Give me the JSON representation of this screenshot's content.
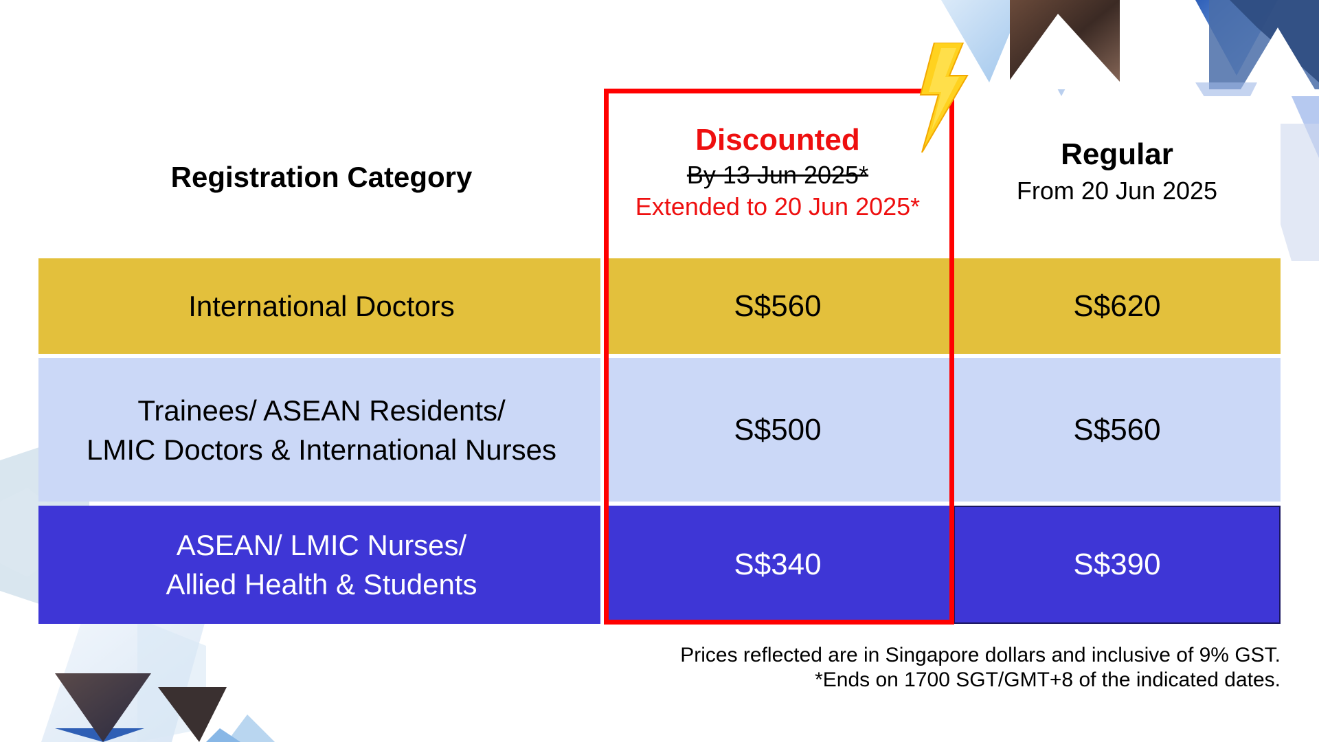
{
  "header": {
    "category_label": "Registration Category",
    "discounted": {
      "title": "Discounted",
      "original_deadline": "By 13 Jun 2025*",
      "extended_deadline": "Extended to 20 Jun 2025*"
    },
    "regular": {
      "title": "Regular",
      "subtitle": "From 20 Jun 2025"
    }
  },
  "rows": [
    {
      "category": "International Doctors",
      "discounted": "S$560",
      "regular": "S$620"
    },
    {
      "category_line1": "Trainees/ ASEAN Residents/",
      "category_line2": "LMIC Doctors & International Nurses",
      "discounted": "S$500",
      "regular": "S$560"
    },
    {
      "category_line1": "ASEAN/ LMIC Nurses/",
      "category_line2": "Allied Health & Students",
      "discounted": "S$340",
      "regular": "S$390"
    }
  ],
  "footnotes": {
    "line1": "Prices reflected are in Singapore dollars and inclusive of 9% GST.",
    "line2": "*Ends on 1700 SGT/GMT+8 of the indicated dates."
  },
  "colors": {
    "row1": "#e3c03c",
    "row2": "#cbd8f7",
    "row3": "#3e36d6",
    "highlight": "#ff0000",
    "discount_text": "#ee0f0f",
    "bolt": "#ffd21f"
  },
  "icons": {
    "lightning": "lightning-bolt-icon"
  }
}
